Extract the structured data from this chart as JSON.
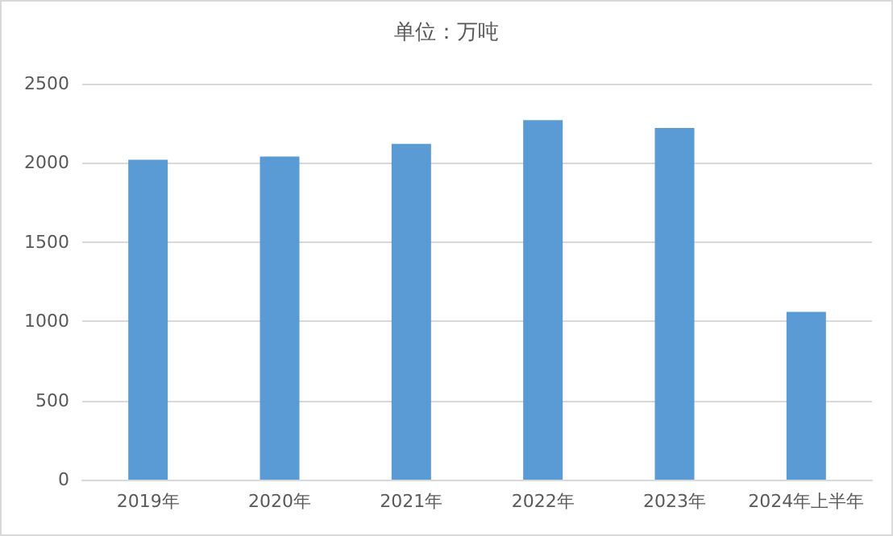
{
  "chart_data": {
    "type": "bar",
    "title": "单位：万吨",
    "categories": [
      "2019年",
      "2020年",
      "2021年",
      "2022年",
      "2023年",
      "2024年上半年"
    ],
    "values": [
      2020,
      2040,
      2120,
      2270,
      2220,
      1060
    ],
    "color": "#5b9bd5",
    "ylim": [
      0,
      2500
    ],
    "yticks": [
      0,
      500,
      1000,
      1500,
      2000,
      2500
    ],
    "grid": "y"
  }
}
